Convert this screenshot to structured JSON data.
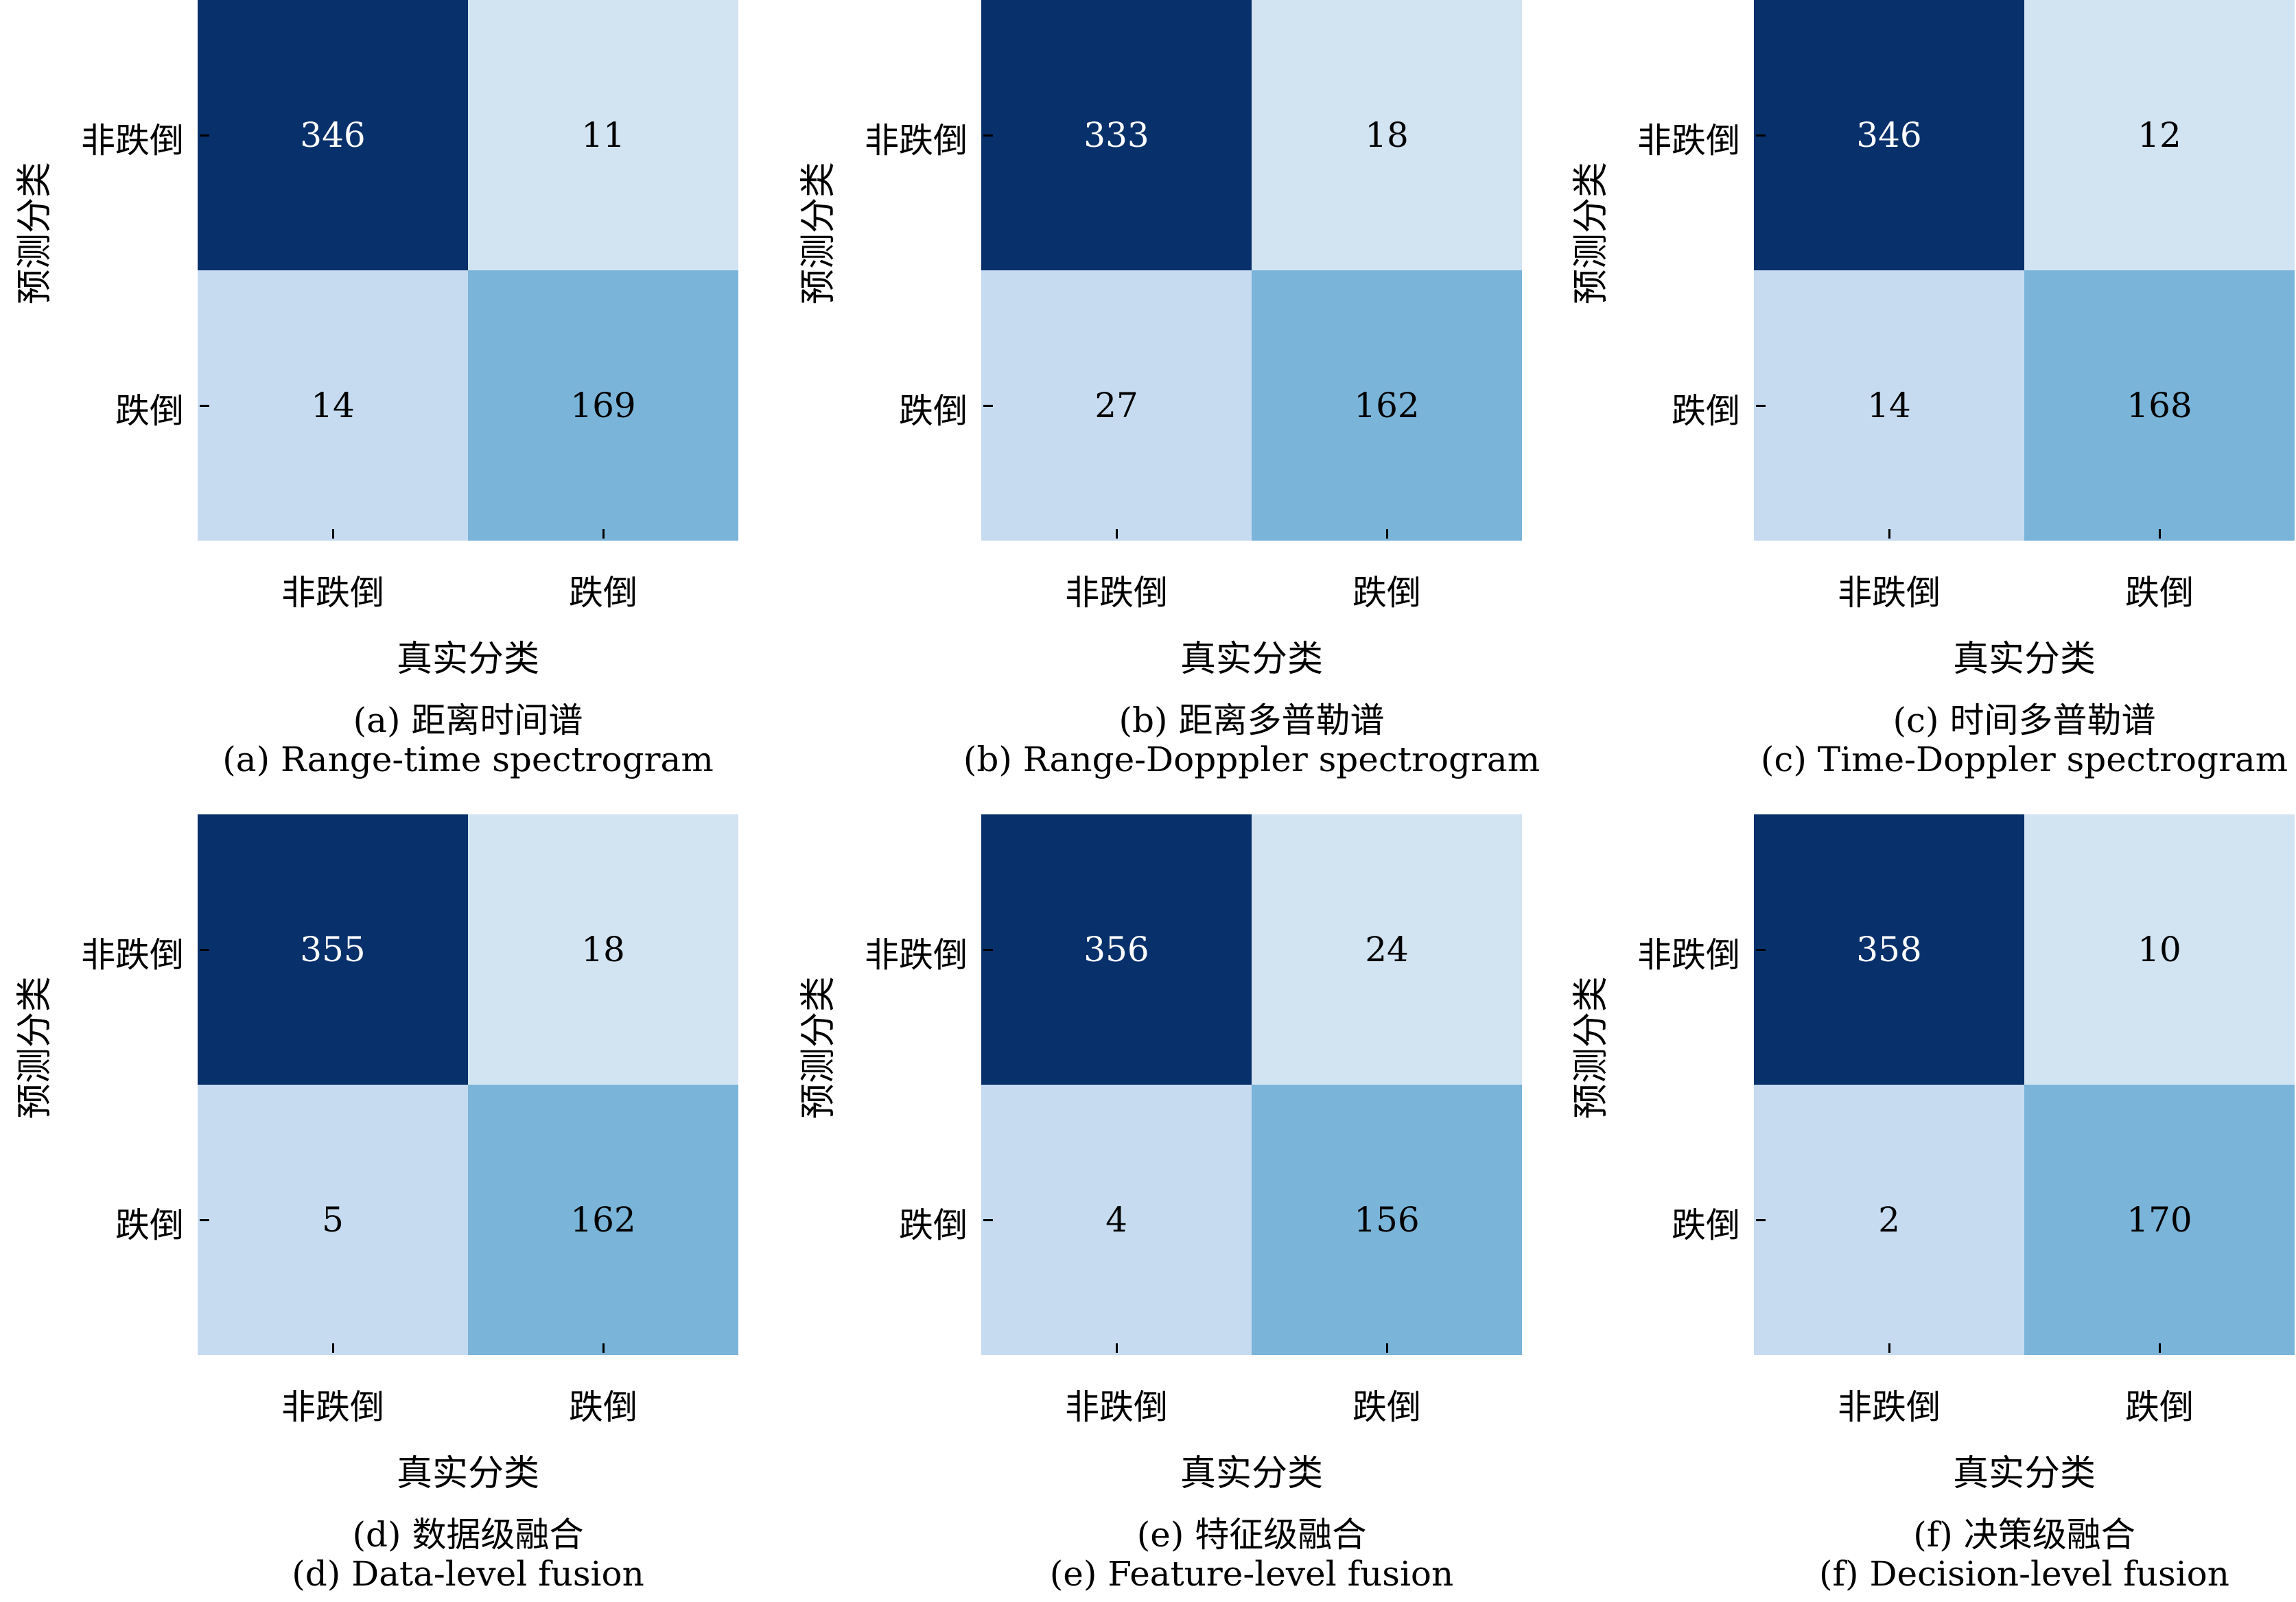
{
  "colors": {
    "high": "#08306b",
    "mid": "#7ab4d9",
    "low": "#d2e3f2",
    "low2": "#c6dbef"
  },
  "chart_data": [
    {
      "type": "heatmap",
      "caption_cn": "(a) 距离时间谱",
      "caption_en": "(a) Range-time spectrogram",
      "xlabel": "真实分类",
      "ylabel": "预测分类",
      "categories": [
        "非跌倒",
        "跌倒"
      ],
      "matrix": [
        [
          346,
          11
        ],
        [
          14,
          169
        ]
      ]
    },
    {
      "type": "heatmap",
      "caption_cn": "(b) 距离多普勒谱",
      "caption_en": "(b) Range-Dopppler spectrogram",
      "xlabel": "真实分类",
      "ylabel": "预测分类",
      "categories": [
        "非跌倒",
        "跌倒"
      ],
      "matrix": [
        [
          333,
          18
        ],
        [
          27,
          162
        ]
      ]
    },
    {
      "type": "heatmap",
      "caption_cn": "(c) 时间多普勒谱",
      "caption_en": "(c) Time-Doppler spectrogram",
      "xlabel": "真实分类",
      "ylabel": "预测分类",
      "categories": [
        "非跌倒",
        "跌倒"
      ],
      "matrix": [
        [
          346,
          12
        ],
        [
          14,
          168
        ]
      ]
    },
    {
      "type": "heatmap",
      "caption_cn": "(d) 数据级融合",
      "caption_en": "(d) Data-level fusion",
      "xlabel": "真实分类",
      "ylabel": "预测分类",
      "categories": [
        "非跌倒",
        "跌倒"
      ],
      "matrix": [
        [
          355,
          18
        ],
        [
          5,
          162
        ]
      ]
    },
    {
      "type": "heatmap",
      "caption_cn": "(e) 特征级融合",
      "caption_en": "(e) Feature-level fusion",
      "xlabel": "真实分类",
      "ylabel": "预测分类",
      "categories": [
        "非跌倒",
        "跌倒"
      ],
      "matrix": [
        [
          356,
          24
        ],
        [
          4,
          156
        ]
      ]
    },
    {
      "type": "heatmap",
      "caption_cn": "(f) 决策级融合",
      "caption_en": "(f) Decision-level fusion",
      "xlabel": "真实分类",
      "ylabel": "预测分类",
      "categories": [
        "非跌倒",
        "跌倒"
      ],
      "matrix": [
        [
          358,
          10
        ],
        [
          2,
          170
        ]
      ]
    }
  ]
}
